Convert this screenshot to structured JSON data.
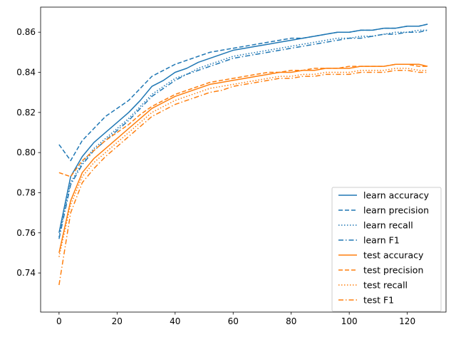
{
  "chart_data": {
    "type": "line",
    "title": "",
    "xlabel": "",
    "ylabel": "",
    "xlim": [
      -6.35,
      133.35
    ],
    "ylim": [
      0.7205,
      0.8725
    ],
    "xticks": [
      0,
      20,
      40,
      60,
      80,
      100,
      120
    ],
    "xtick_labels": [
      "0",
      "20",
      "40",
      "60",
      "80",
      "100",
      "120"
    ],
    "yticks": [
      0.74,
      0.76,
      0.78,
      0.8,
      0.82,
      0.84,
      0.86
    ],
    "ytick_labels": [
      "0.74",
      "0.76",
      "0.78",
      "0.80",
      "0.82",
      "0.84",
      "0.86"
    ],
    "grid": false,
    "legend_position": "lower-right",
    "x": [
      0,
      4,
      8,
      12,
      16,
      20,
      24,
      28,
      32,
      36,
      40,
      44,
      48,
      52,
      56,
      60,
      64,
      68,
      72,
      76,
      80,
      84,
      88,
      92,
      96,
      100,
      104,
      108,
      112,
      116,
      120,
      124,
      127
    ],
    "series": [
      {
        "name": "learn accuracy",
        "color": "#1f77b4",
        "dash": "solid",
        "values": [
          0.76,
          0.788,
          0.798,
          0.805,
          0.81,
          0.815,
          0.82,
          0.826,
          0.833,
          0.836,
          0.84,
          0.842,
          0.845,
          0.847,
          0.849,
          0.851,
          0.852,
          0.853,
          0.854,
          0.855,
          0.856,
          0.857,
          0.858,
          0.859,
          0.86,
          0.86,
          0.861,
          0.861,
          0.862,
          0.862,
          0.863,
          0.863,
          0.864
        ]
      },
      {
        "name": "learn precision",
        "color": "#1f77b4",
        "dash": "dashed",
        "values": [
          0.804,
          0.796,
          0.806,
          0.812,
          0.818,
          0.822,
          0.826,
          0.832,
          0.838,
          0.841,
          0.844,
          0.846,
          0.848,
          0.85,
          0.851,
          0.852,
          0.853,
          0.854,
          0.855,
          0.856,
          0.857,
          0.857,
          0.858,
          0.859,
          0.86,
          0.86,
          0.861,
          0.861,
          0.862,
          0.862,
          0.863,
          0.863,
          0.864
        ]
      },
      {
        "name": "learn recall",
        "color": "#1f77b4",
        "dash": "dotted",
        "values": [
          0.758,
          0.785,
          0.795,
          0.802,
          0.807,
          0.812,
          0.817,
          0.823,
          0.829,
          0.833,
          0.837,
          0.839,
          0.842,
          0.844,
          0.846,
          0.848,
          0.849,
          0.85,
          0.851,
          0.852,
          0.853,
          0.854,
          0.855,
          0.856,
          0.857,
          0.857,
          0.858,
          0.858,
          0.859,
          0.86,
          0.86,
          0.861,
          0.861
        ]
      },
      {
        "name": "learn F1",
        "color": "#1f77b4",
        "dash": "dashdot",
        "values": [
          0.757,
          0.784,
          0.794,
          0.801,
          0.806,
          0.811,
          0.816,
          0.822,
          0.828,
          0.832,
          0.836,
          0.839,
          0.841,
          0.843,
          0.845,
          0.847,
          0.848,
          0.849,
          0.85,
          0.851,
          0.852,
          0.853,
          0.854,
          0.855,
          0.856,
          0.857,
          0.857,
          0.858,
          0.859,
          0.859,
          0.86,
          0.86,
          0.861
        ]
      },
      {
        "name": "test accuracy",
        "color": "#ff7f0e",
        "dash": "solid",
        "values": [
          0.75,
          0.776,
          0.79,
          0.797,
          0.802,
          0.807,
          0.812,
          0.817,
          0.822,
          0.825,
          0.828,
          0.83,
          0.832,
          0.834,
          0.835,
          0.836,
          0.837,
          0.838,
          0.839,
          0.84,
          0.84,
          0.841,
          0.841,
          0.842,
          0.842,
          0.842,
          0.843,
          0.843,
          0.843,
          0.844,
          0.844,
          0.844,
          0.843
        ]
      },
      {
        "name": "test precision",
        "color": "#ff7f0e",
        "dash": "dashed",
        "values": [
          0.79,
          0.788,
          0.796,
          0.801,
          0.806,
          0.81,
          0.814,
          0.819,
          0.823,
          0.826,
          0.829,
          0.831,
          0.833,
          0.835,
          0.836,
          0.837,
          0.838,
          0.839,
          0.84,
          0.84,
          0.841,
          0.841,
          0.842,
          0.842,
          0.842,
          0.843,
          0.843,
          0.843,
          0.843,
          0.844,
          0.844,
          0.843,
          0.843
        ]
      },
      {
        "name": "test recall",
        "color": "#ff7f0e",
        "dash": "dotted",
        "values": [
          0.748,
          0.774,
          0.788,
          0.795,
          0.8,
          0.805,
          0.81,
          0.815,
          0.82,
          0.823,
          0.826,
          0.828,
          0.83,
          0.832,
          0.833,
          0.834,
          0.835,
          0.836,
          0.837,
          0.838,
          0.838,
          0.839,
          0.839,
          0.84,
          0.84,
          0.84,
          0.841,
          0.841,
          0.841,
          0.842,
          0.842,
          0.841,
          0.841
        ]
      },
      {
        "name": "test F1",
        "color": "#ff7f0e",
        "dash": "dashdot",
        "values": [
          0.734,
          0.77,
          0.785,
          0.792,
          0.798,
          0.803,
          0.808,
          0.813,
          0.818,
          0.821,
          0.824,
          0.826,
          0.828,
          0.83,
          0.831,
          0.833,
          0.834,
          0.835,
          0.836,
          0.837,
          0.837,
          0.838,
          0.838,
          0.839,
          0.839,
          0.839,
          0.84,
          0.84,
          0.84,
          0.841,
          0.841,
          0.84,
          0.84
        ]
      }
    ]
  }
}
